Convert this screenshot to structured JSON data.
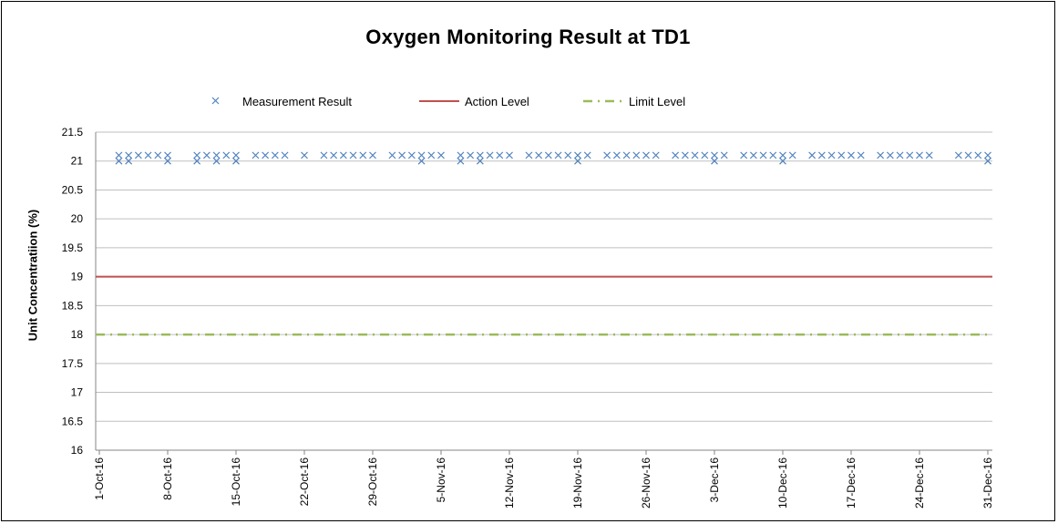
{
  "chart_data": {
    "type": "scatter",
    "title": "Oxygen Monitoring Result at TD1",
    "xlabel": "",
    "ylabel": "Unit Concentratiion (%)",
    "ylim": [
      16,
      21.5
    ],
    "y_ticks": [
      "16",
      "16.5",
      "17",
      "17.5",
      "18",
      "18.5",
      "19",
      "19.5",
      "20",
      "20.5",
      "21",
      "21.5"
    ],
    "x_tick_labels": [
      "1-Oct-16",
      "8-Oct-16",
      "15-Oct-16",
      "22-Oct-16",
      "29-Oct-16",
      "5-Nov-16",
      "12-Nov-16",
      "19-Nov-16",
      "26-Nov-16",
      "3-Dec-16",
      "10-Dec-16",
      "17-Dec-16",
      "24-Dec-16",
      "31-Dec-16"
    ],
    "xlim": [
      "2016-10-01",
      "2016-12-31"
    ],
    "grid": "horizontal",
    "legend_position": "top",
    "series": [
      {
        "name": "Measurement Result",
        "marker": "x",
        "color": "#4F81BD",
        "points": [
          [
            "2016-10-03",
            21.0
          ],
          [
            "2016-10-03",
            21.1
          ],
          [
            "2016-10-04",
            21.0
          ],
          [
            "2016-10-04",
            21.1
          ],
          [
            "2016-10-05",
            21.1
          ],
          [
            "2016-10-06",
            21.1
          ],
          [
            "2016-10-07",
            21.1
          ],
          [
            "2016-10-08",
            21.0
          ],
          [
            "2016-10-08",
            21.1
          ],
          [
            "2016-10-11",
            21.0
          ],
          [
            "2016-10-11",
            21.1
          ],
          [
            "2016-10-12",
            21.1
          ],
          [
            "2016-10-13",
            21.0
          ],
          [
            "2016-10-13",
            21.1
          ],
          [
            "2016-10-14",
            21.1
          ],
          [
            "2016-10-15",
            21.0
          ],
          [
            "2016-10-15",
            21.1
          ],
          [
            "2016-10-17",
            21.1
          ],
          [
            "2016-10-18",
            21.1
          ],
          [
            "2016-10-19",
            21.1
          ],
          [
            "2016-10-20",
            21.1
          ],
          [
            "2016-10-22",
            21.1
          ],
          [
            "2016-10-24",
            21.1
          ],
          [
            "2016-10-25",
            21.1
          ],
          [
            "2016-10-26",
            21.1
          ],
          [
            "2016-10-27",
            21.1
          ],
          [
            "2016-10-28",
            21.1
          ],
          [
            "2016-10-29",
            21.1
          ],
          [
            "2016-10-31",
            21.1
          ],
          [
            "2016-11-01",
            21.1
          ],
          [
            "2016-11-02",
            21.1
          ],
          [
            "2016-11-03",
            21.0
          ],
          [
            "2016-11-03",
            21.1
          ],
          [
            "2016-11-04",
            21.1
          ],
          [
            "2016-11-05",
            21.1
          ],
          [
            "2016-11-07",
            21.0
          ],
          [
            "2016-11-07",
            21.1
          ],
          [
            "2016-11-08",
            21.1
          ],
          [
            "2016-11-09",
            21.0
          ],
          [
            "2016-11-09",
            21.1
          ],
          [
            "2016-11-10",
            21.1
          ],
          [
            "2016-11-11",
            21.1
          ],
          [
            "2016-11-12",
            21.1
          ],
          [
            "2016-11-14",
            21.1
          ],
          [
            "2016-11-15",
            21.1
          ],
          [
            "2016-11-16",
            21.1
          ],
          [
            "2016-11-17",
            21.1
          ],
          [
            "2016-11-18",
            21.1
          ],
          [
            "2016-11-19",
            21.0
          ],
          [
            "2016-11-19",
            21.1
          ],
          [
            "2016-11-20",
            21.1
          ],
          [
            "2016-11-22",
            21.1
          ],
          [
            "2016-11-23",
            21.1
          ],
          [
            "2016-11-24",
            21.1
          ],
          [
            "2016-11-25",
            21.1
          ],
          [
            "2016-11-26",
            21.1
          ],
          [
            "2016-11-27",
            21.1
          ],
          [
            "2016-11-29",
            21.1
          ],
          [
            "2016-11-30",
            21.1
          ],
          [
            "2016-12-01",
            21.1
          ],
          [
            "2016-12-02",
            21.1
          ],
          [
            "2016-12-03",
            21.0
          ],
          [
            "2016-12-03",
            21.1
          ],
          [
            "2016-12-04",
            21.1
          ],
          [
            "2016-12-06",
            21.1
          ],
          [
            "2016-12-07",
            21.1
          ],
          [
            "2016-12-08",
            21.1
          ],
          [
            "2016-12-09",
            21.1
          ],
          [
            "2016-12-10",
            21.0
          ],
          [
            "2016-12-10",
            21.1
          ],
          [
            "2016-12-11",
            21.1
          ],
          [
            "2016-12-13",
            21.1
          ],
          [
            "2016-12-14",
            21.1
          ],
          [
            "2016-12-15",
            21.1
          ],
          [
            "2016-12-16",
            21.1
          ],
          [
            "2016-12-17",
            21.1
          ],
          [
            "2016-12-18",
            21.1
          ],
          [
            "2016-12-20",
            21.1
          ],
          [
            "2016-12-21",
            21.1
          ],
          [
            "2016-12-22",
            21.1
          ],
          [
            "2016-12-23",
            21.1
          ],
          [
            "2016-12-24",
            21.1
          ],
          [
            "2016-12-25",
            21.1
          ],
          [
            "2016-12-28",
            21.1
          ],
          [
            "2016-12-29",
            21.1
          ],
          [
            "2016-12-30",
            21.1
          ],
          [
            "2016-12-31",
            21.0
          ],
          [
            "2016-12-31",
            21.1
          ]
        ]
      },
      {
        "name": "Action Level",
        "line": "solid",
        "color": "#C0504D",
        "value": 19
      },
      {
        "name": "Limit Level",
        "line": "dash-dot",
        "color": "#9BBB59",
        "value": 18
      }
    ]
  }
}
